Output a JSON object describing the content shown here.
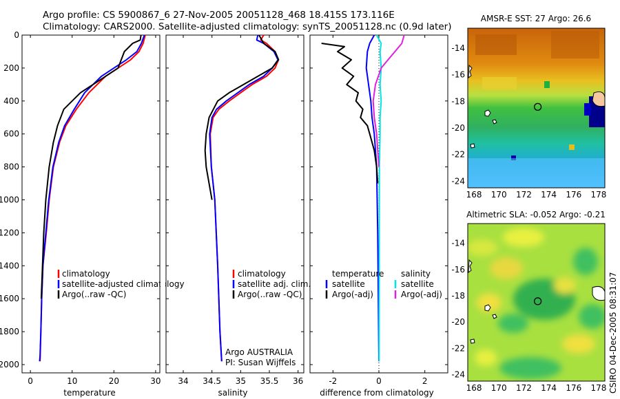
{
  "title_line1": "Argo profile: CS 5900867_6 27-Nov-2005 20051128_468 18.415S 173.116E",
  "title_line2": "Climatology: CARS2000. Satellite-adjusted climatology: synTS_20051128.nc (0.9d later)",
  "side_label": "CSIRO 04-Dec-2005 08:31:07",
  "colors": {
    "climatology": "#ff0000",
    "satellite": "#0000ff",
    "argo": "#000000",
    "sat_diff_sal": "#00e5e5",
    "argo_diff_sal": "#e020e0"
  },
  "chart_data": [
    {
      "id": "temperature",
      "type": "line",
      "xlabel": "temperature",
      "xlim": [
        -2,
        31
      ],
      "ylim": [
        2050,
        0
      ],
      "xticks": [
        0,
        10,
        20,
        30
      ],
      "yticks": [
        0,
        200,
        400,
        600,
        800,
        1000,
        1200,
        1400,
        1600,
        1800,
        2000
      ],
      "legend": [
        "climatology",
        "satellite-adjusted climatology",
        "Argo(..raw -QC)"
      ],
      "legend_colors": [
        "#ff0000",
        "#0000ff",
        "#000000"
      ],
      "series": [
        {
          "name": "climatology",
          "color": "#ff0000",
          "x": [
            27.5,
            27,
            26,
            24,
            21,
            18,
            14,
            11,
            8.5,
            7,
            5.5,
            4.5,
            3.8,
            3,
            2.7,
            2.5,
            2.35,
            2.3
          ],
          "y": [
            0,
            50,
            100,
            150,
            200,
            250,
            350,
            450,
            550,
            650,
            800,
            1000,
            1200,
            1400,
            1600,
            1800,
            1950,
            1980
          ]
        },
        {
          "name": "satellite-adjusted climatology",
          "color": "#0000ff",
          "x": [
            27.3,
            26.6,
            25.5,
            23,
            20,
            17,
            13,
            10.5,
            8.2,
            6.8,
            5.4,
            4.4,
            3.7,
            3,
            2.7,
            2.5,
            2.3,
            2.2
          ],
          "y": [
            0,
            50,
            100,
            150,
            200,
            250,
            350,
            450,
            550,
            650,
            800,
            1000,
            1200,
            1400,
            1600,
            1800,
            1950,
            1980
          ]
        },
        {
          "name": "Argo(..raw -QC)",
          "color": "#000000",
          "x": [
            26.5,
            26.3,
            24.5,
            22.5,
            21,
            18,
            15,
            12,
            10,
            8,
            6.5,
            5.5,
            4.5,
            3.7,
            3.2,
            2.9,
            2.6
          ],
          "y": [
            0,
            30,
            50,
            100,
            200,
            250,
            300,
            350,
            400,
            450,
            550,
            650,
            800,
            1000,
            1200,
            1400,
            1600
          ]
        }
      ]
    },
    {
      "id": "salinity",
      "type": "line",
      "xlabel": "salinity",
      "xlim": [
        33.7,
        36.1
      ],
      "ylim": [
        2050,
        0
      ],
      "xticks": [
        34,
        34.5,
        35,
        35.5,
        36
      ],
      "legend": [
        "climatology",
        "satellite adj. clim.",
        "Argo(..raw -QC)"
      ],
      "legend_colors": [
        "#ff0000",
        "#0000ff",
        "#000000"
      ],
      "annotation": [
        "Argo AUSTRALIA",
        "PI: Susan Wijffels"
      ],
      "series": [
        {
          "name": "climatology",
          "color": "#ff0000",
          "x": [
            35.4,
            35.35,
            35.45,
            35.6,
            35.66,
            35.6,
            35.45,
            35.2,
            35,
            34.8,
            34.62,
            34.52,
            34.47,
            34.49,
            34.55,
            34.6,
            34.64,
            34.67
          ],
          "y": [
            0,
            30,
            50,
            100,
            150,
            200,
            250,
            300,
            350,
            400,
            450,
            500,
            600,
            800,
            1000,
            1400,
            1800,
            1980
          ]
        },
        {
          "name": "satellite adj. clim.",
          "color": "#0000ff",
          "x": [
            35.3,
            35.28,
            35.4,
            35.58,
            35.65,
            35.55,
            35.4,
            35.15,
            34.95,
            34.75,
            34.58,
            34.5,
            34.46,
            34.49,
            34.55,
            34.6,
            34.64,
            34.67
          ],
          "y": [
            0,
            30,
            50,
            100,
            150,
            200,
            250,
            300,
            350,
            400,
            450,
            500,
            600,
            800,
            1000,
            1400,
            1800,
            1980
          ]
        },
        {
          "name": "Argo(..raw -QC)",
          "color": "#000000",
          "x": [
            35.32,
            35.4,
            35.6,
            35.66,
            35.55,
            35.3,
            35.05,
            34.8,
            34.6,
            34.45,
            34.4,
            34.38,
            34.4,
            34.45,
            34.5
          ],
          "y": [
            0,
            50,
            100,
            150,
            200,
            250,
            300,
            350,
            400,
            500,
            600,
            700,
            800,
            900,
            1000
          ]
        }
      ]
    },
    {
      "id": "difference",
      "type": "line",
      "xlabel": "difference from climatology",
      "xlim": [
        -3,
        3
      ],
      "ylim": [
        2050,
        0
      ],
      "xticks": [
        -2,
        0,
        2
      ],
      "legend_left_title": "temperature",
      "legend_right_title": "salinity",
      "legend_left": [
        "satellite",
        "Argo(-adj)"
      ],
      "legend_left_colors": [
        "#0000ff",
        "#000000"
      ],
      "legend_right": [
        "satellite",
        "Argo(-adj)"
      ],
      "legend_right_colors": [
        "#00e5e5",
        "#e020e0"
      ],
      "series": [
        {
          "name": "temperature satellite",
          "color": "#0000ff",
          "x": [
            -0.2,
            -0.4,
            -0.5,
            -0.55,
            -0.45,
            -0.35,
            -0.3,
            -0.2,
            -0.1,
            -0.05,
            0
          ],
          "y": [
            0,
            50,
            100,
            200,
            300,
            400,
            500,
            600,
            800,
            1200,
            1980
          ]
        },
        {
          "name": "temperature Argo(-adj)",
          "color": "#000000",
          "x": [
            -2.5,
            -1.5,
            -1.8,
            -1.2,
            -1.6,
            -1.1,
            -1.4,
            -0.9,
            -1,
            -0.7,
            -0.8,
            -0.5,
            -0.4,
            -0.2,
            -0.1,
            -0.05
          ],
          "y": [
            50,
            70,
            100,
            150,
            200,
            250,
            300,
            350,
            400,
            450,
            500,
            550,
            600,
            700,
            800,
            900
          ]
        },
        {
          "name": "salinity satellite",
          "color": "#00e5e5",
          "x": [
            -0.1,
            0.1,
            0.05,
            0.1,
            0.05,
            0.1,
            0.05,
            0.05,
            0.02,
            0.01
          ],
          "y": [
            0,
            50,
            100,
            200,
            300,
            400,
            500,
            600,
            800,
            1980
          ]
        },
        {
          "name": "salinity Argo(-adj)",
          "color": "#e020e0",
          "x": [
            1.1,
            1,
            0.7,
            0.4,
            0.1,
            -0.15,
            -0.25,
            -0.2,
            -0.1,
            -0.05,
            0
          ],
          "y": [
            0,
            50,
            100,
            150,
            200,
            300,
            400,
            500,
            600,
            700,
            800
          ]
        }
      ]
    },
    {
      "id": "sst_map",
      "type": "heatmap",
      "title": "AMSR-E SST: 27  Argo: 26.6",
      "xlim": [
        167.5,
        178.5
      ],
      "ylim": [
        -24.5,
        -12.5
      ],
      "xticks": [
        168,
        170,
        172,
        174,
        176,
        178
      ],
      "yticks": [
        -14,
        -16,
        -18,
        -20,
        -22,
        -24
      ],
      "argo_position": {
        "lon": 173.116,
        "lat": -18.415
      }
    },
    {
      "id": "sla_map",
      "type": "heatmap",
      "title": "Altimetric SLA: -0.052  Argo: -0.21",
      "xlim": [
        167.5,
        178.5
      ],
      "ylim": [
        -24.5,
        -12.5
      ],
      "xticks": [
        168,
        170,
        172,
        174,
        176,
        178
      ],
      "yticks": [
        -14,
        -16,
        -18,
        -20,
        -22,
        -24
      ],
      "argo_position": {
        "lon": 173.116,
        "lat": -18.415
      }
    }
  ]
}
